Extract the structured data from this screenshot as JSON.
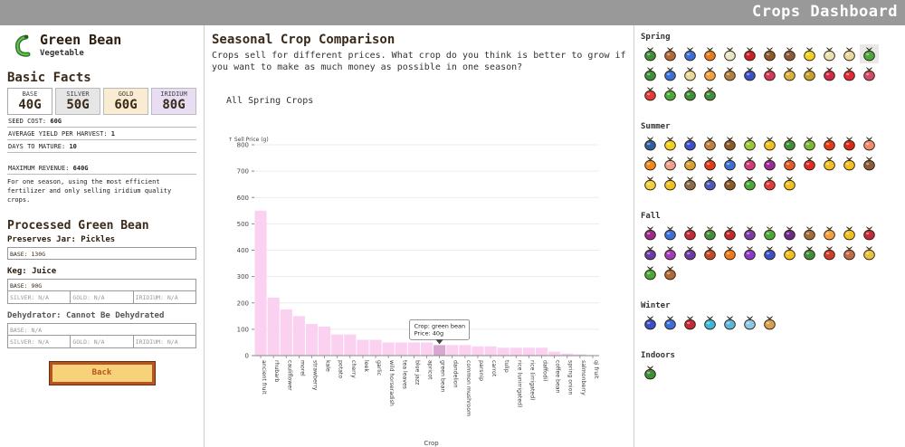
{
  "app": {
    "title": "Crops Dashboard"
  },
  "crop": {
    "name": "Green Bean",
    "type": "Vegetable"
  },
  "basic_facts": {
    "heading": "Basic Facts",
    "prices": [
      {
        "label": "BASE",
        "value": "40G"
      },
      {
        "label": "SILVER",
        "value": "50G"
      },
      {
        "label": "GOLD",
        "value": "60G"
      },
      {
        "label": "IRIDIUM",
        "value": "80G"
      }
    ],
    "facts": [
      {
        "label": "SEED COST:",
        "value": "60G"
      },
      {
        "label": "AVERAGE YIELD PER HARVEST:",
        "value": "1"
      },
      {
        "label": "DAYS TO MATURE:",
        "value": "10"
      }
    ],
    "max_revenue_label": "MAXIMUM REVENUE:",
    "max_revenue_value": "640G",
    "description": "For one season, using the most efficient fertilizer and only selling iridium quality crops."
  },
  "processed": {
    "heading": "Processed Green Bean",
    "preserves_label": "Preserves Jar: Pickles",
    "preserves_base": "BASE: 130G",
    "keg_label": "Keg: Juice",
    "keg_base": "BASE: 90G",
    "keg_silver": "SILVER: N/A",
    "keg_gold": "GOLD: N/A",
    "keg_iridium": "IRIDIUM: N/A",
    "dehydrator_label": "Dehydrator: Cannot Be Dehydrated",
    "dehydrator_base": "BASE: N/A",
    "dehydrator_silver": "SILVER: N/A",
    "dehydrator_gold": "GOLD: N/A",
    "dehydrator_iridium": "IRIDIUM: N/A"
  },
  "back_button": {
    "label": "Back"
  },
  "comparison": {
    "heading": "Seasonal Crop Comparison",
    "intro": "Crops sell for different prices. What crop do you think is better to grow if you want to make as much money as possible in one season?"
  },
  "chart_data": {
    "type": "bar",
    "title": "All Spring Crops",
    "xlabel": "Crop",
    "ylabel": "Sell Price (g)",
    "ylim": [
      0,
      800
    ],
    "yticks": [
      0,
      100,
      200,
      300,
      400,
      500,
      600,
      700,
      800
    ],
    "grid": true,
    "bar_color": "#fad1f0",
    "highlight_color": "#d9a8d0",
    "categories": [
      "ancient fruit",
      "rhubarb",
      "cauliflower",
      "morel",
      "strawberry",
      "kale",
      "potato",
      "cherry",
      "leek",
      "garlic",
      "wild horseradish",
      "tea leaves",
      "blue jazz",
      "apricot",
      "green bean",
      "dandelion",
      "common mushroom",
      "parsnip",
      "carrot",
      "tulip",
      "rice (unirrigated)",
      "rice (irrigated)",
      "daffodil",
      "coffee bean",
      "spring onion",
      "salmonberry",
      "qi fruit"
    ],
    "values": [
      550,
      220,
      175,
      150,
      120,
      110,
      80,
      80,
      60,
      60,
      50,
      50,
      50,
      50,
      40,
      40,
      40,
      35,
      35,
      30,
      30,
      30,
      30,
      15,
      8,
      5,
      1
    ],
    "highlighted": "green bean",
    "tooltip": {
      "crop_label": "Crop: green bean",
      "price_label": "Price: 40g"
    }
  },
  "seasons": [
    {
      "name": "Spring",
      "crops": [
        {
          "icon": "tea-sapling",
          "color": "#3f8f3a",
          "accent": "#2f5fa0"
        },
        {
          "icon": "coffee-bean",
          "color": "#b06a3a",
          "accent": "#6b3a1a"
        },
        {
          "icon": "blue-jazz",
          "color": "#3a6fd8",
          "accent": "#2e7a2e"
        },
        {
          "icon": "carrot",
          "color": "#e57a1e",
          "accent": "#3f8f3a"
        },
        {
          "icon": "cauliflower",
          "color": "#e8e4c8",
          "accent": "#3f8f3a"
        },
        {
          "icon": "cherry",
          "color": "#c9202a",
          "accent": "#3f8f3a"
        },
        {
          "icon": "coffee-bean-2",
          "color": "#8a5a2a",
          "accent": "#c9a24a"
        },
        {
          "icon": "morel",
          "color": "#8a5a3a",
          "accent": "#c9a24a"
        },
        {
          "icon": "daffodil",
          "color": "#f0d020",
          "accent": "#3f8f3a"
        },
        {
          "icon": "garlic",
          "color": "#e8e0b0",
          "accent": "#3f8f3a"
        },
        {
          "icon": "rice",
          "color": "#e8d8a0",
          "accent": "#9a8a4a"
        },
        {
          "icon": "green-bean",
          "color": "#4aa83a",
          "accent": "#2e7a2e"
        },
        {
          "icon": "kale",
          "color": "#3f8f3a",
          "accent": "#2e7a2e"
        },
        {
          "icon": "jar",
          "color": "#3a6fd8",
          "accent": "#3f8f3a"
        },
        {
          "icon": "parsnip",
          "color": "#e8d89a",
          "accent": "#3f8f3a"
        },
        {
          "icon": "apricot",
          "color": "#f0a040",
          "accent": "#3f8f3a"
        },
        {
          "icon": "potato",
          "color": "#b08040",
          "accent": "#6b4a1a"
        },
        {
          "icon": "blue-berries",
          "color": "#3a50c8",
          "accent": "#2e7a2e"
        },
        {
          "icon": "rhubarb",
          "color": "#d03a5a",
          "accent": "#3f8f3a"
        },
        {
          "icon": "wheat",
          "color": "#d8b040",
          "accent": "#9a7a2a"
        },
        {
          "icon": "wheat-2",
          "color": "#c8a030",
          "accent": "#9a7a2a"
        },
        {
          "icon": "salmonberry",
          "color": "#d02a4a",
          "accent": "#8a1a2a"
        },
        {
          "icon": "strawberry",
          "color": "#e02a3a",
          "accent": "#3f8f3a"
        },
        {
          "icon": "rhubarb-stalk",
          "color": "#d04a6a",
          "accent": "#3f8f3a"
        },
        {
          "icon": "strawberry-2",
          "color": "#e03a3a",
          "accent": "#3f8f3a"
        },
        {
          "icon": "spring-onion",
          "color": "#4aa83a",
          "accent": "#e8e0b0"
        },
        {
          "icon": "leek",
          "color": "#3f8f3a",
          "accent": "#e8e0b0"
        },
        {
          "icon": "tulip-pot",
          "color": "#3f8f3a",
          "accent": "#c9a24a"
        }
      ]
    },
    {
      "name": "Summer",
      "crops": [
        {
          "icon": "summer-1",
          "color": "#2f5fa0",
          "accent": "#3f8f3a"
        },
        {
          "icon": "banana",
          "color": "#f0d020",
          "accent": "#8a6a1a"
        },
        {
          "icon": "blueberry",
          "color": "#3a50c8",
          "accent": "#2e7a2e"
        },
        {
          "icon": "bread",
          "color": "#c08040",
          "accent": "#6b3a1a"
        },
        {
          "icon": "coconut",
          "color": "#8a5a2a",
          "accent": "#3a2a1a"
        },
        {
          "icon": "hops",
          "color": "#9ac83a",
          "accent": "#3f8f3a"
        },
        {
          "icon": "corn",
          "color": "#f0c020",
          "accent": "#3f8f3a"
        },
        {
          "icon": "herb",
          "color": "#3f8f3a",
          "accent": "#2e7a2e"
        },
        {
          "icon": "hops-2",
          "color": "#7ab83a",
          "accent": "#3f8f3a"
        },
        {
          "icon": "hot-pepper",
          "color": "#e03a1a",
          "accent": "#3f8f3a"
        },
        {
          "icon": "chili",
          "color": "#d82a1a",
          "accent": "#3f8f3a"
        },
        {
          "icon": "peach",
          "color": "#f08a6a",
          "accent": "#3f8f3a"
        },
        {
          "icon": "orange",
          "color": "#f08a20",
          "accent": "#3f8f3a"
        },
        {
          "icon": "peach-2",
          "color": "#f0a08a",
          "accent": "#3f8f3a"
        },
        {
          "icon": "pineapple",
          "color": "#d8a030",
          "accent": "#3f8f3a"
        },
        {
          "icon": "poppy",
          "color": "#e03a1a",
          "accent": "#3f8f3a"
        },
        {
          "icon": "blue-pot",
          "color": "#3a6fd8",
          "accent": "#3f8f3a"
        },
        {
          "icon": "radish",
          "color": "#d03a7a",
          "accent": "#3f8f3a"
        },
        {
          "icon": "red-cabbage",
          "color": "#9a2a9a",
          "accent": "#3f8f3a"
        },
        {
          "icon": "mushroom",
          "color": "#e05a2a",
          "accent": "#e8e0b0"
        },
        {
          "icon": "tomato",
          "color": "#e02a2a",
          "accent": "#3f8f3a"
        },
        {
          "icon": "starfruit",
          "color": "#f0c020",
          "accent": "#c08a10"
        },
        {
          "icon": "sunflower",
          "color": "#f0c020",
          "accent": "#6b3a1a"
        },
        {
          "icon": "taro",
          "color": "#8a5a3a",
          "accent": "#3f8f3a"
        },
        {
          "icon": "banana-2",
          "color": "#f0d040",
          "accent": "#8a6a1a"
        },
        {
          "icon": "summer-spangle",
          "color": "#f0c020",
          "accent": "#3f8f3a"
        },
        {
          "icon": "taro-root",
          "color": "#8a6a4a",
          "accent": "#3f8f3a"
        },
        {
          "icon": "blueberry-bush",
          "color": "#4a5ab8",
          "accent": "#3f8f3a"
        },
        {
          "icon": "wild-log",
          "color": "#8a5a2a",
          "accent": "#6b3a1a"
        },
        {
          "icon": "herb-2",
          "color": "#4aa83a",
          "accent": "#2e7a2e"
        },
        {
          "icon": "radish-2",
          "color": "#e03a3a",
          "accent": "#3f8f3a"
        },
        {
          "icon": "flower-pot",
          "color": "#f0c020",
          "accent": "#3f8f3a"
        }
      ]
    },
    {
      "name": "Fall",
      "crops": [
        {
          "icon": "amaranth",
          "color": "#9a2a8a",
          "accent": "#3f8f3a"
        },
        {
          "icon": "artichoke",
          "color": "#3a6fd8",
          "accent": "#3f8f3a"
        },
        {
          "icon": "beet",
          "color": "#c02a3a",
          "accent": "#3f8f3a"
        },
        {
          "icon": "bok-choy",
          "color": "#3f8f3a",
          "accent": "#e8e0b0"
        },
        {
          "icon": "cranberry",
          "color": "#c02a2a",
          "accent": "#3f8f3a"
        },
        {
          "icon": "grape",
          "color": "#7a3aa8",
          "accent": "#3f8f3a"
        },
        {
          "icon": "bok-choy-2",
          "color": "#4aa83a",
          "accent": "#e8e0b0"
        },
        {
          "icon": "eggplant",
          "color": "#6a2a8a",
          "accent": "#3f8f3a"
        },
        {
          "icon": "mushroom-2",
          "color": "#a06a3a",
          "accent": "#e8e0b0"
        },
        {
          "icon": "fairy-rose",
          "color": "#f0a040",
          "accent": "#3f8f3a"
        },
        {
          "icon": "corn-2",
          "color": "#f0c020",
          "accent": "#3f8f3a"
        },
        {
          "icon": "radish-3",
          "color": "#c02a3a",
          "accent": "#3f8f3a"
        },
        {
          "icon": "eggplant-2",
          "color": "#6a3aa8",
          "accent": "#3f8f3a"
        },
        {
          "icon": "amaranth-2",
          "color": "#a03ab8",
          "accent": "#3f8f3a"
        },
        {
          "icon": "grape-2",
          "color": "#6a3aa8",
          "accent": "#3f8f3a"
        },
        {
          "icon": "pomegranate",
          "color": "#c04a2a",
          "accent": "#6b2a1a"
        },
        {
          "icon": "pumpkin",
          "color": "#f07a1a",
          "accent": "#3f8f3a"
        },
        {
          "icon": "purple-mushroom",
          "color": "#8a3ac8",
          "accent": "#e8e0b0"
        },
        {
          "icon": "blue-jar",
          "color": "#3a50c8",
          "accent": "#3f8f3a"
        },
        {
          "icon": "sunflower-2",
          "color": "#f0c020",
          "accent": "#6b3a1a"
        },
        {
          "icon": "herb-3",
          "color": "#3f8f3a",
          "accent": "#2e7a2e"
        },
        {
          "icon": "pomegranate-2",
          "color": "#d03a2a",
          "accent": "#3f8f3a"
        },
        {
          "icon": "yam",
          "color": "#c06a4a",
          "accent": "#3f8f3a"
        },
        {
          "icon": "wheat-3",
          "color": "#e8c040",
          "accent": "#9a7a2a"
        },
        {
          "icon": "leaf",
          "color": "#4aa83a",
          "accent": "#2e7a2e"
        },
        {
          "icon": "sweet-gem",
          "color": "#b06a3a",
          "accent": "#6b3a1a"
        }
      ]
    },
    {
      "name": "Winter",
      "crops": [
        {
          "icon": "winter-1",
          "color": "#3a50c8",
          "accent": "#7a3aa8"
        },
        {
          "icon": "winter-2",
          "color": "#3a6fd8",
          "accent": "#3f8f3a"
        },
        {
          "icon": "holly",
          "color": "#c02a3a",
          "accent": "#3f8f3a"
        },
        {
          "icon": "crystal-fruit",
          "color": "#3ab8d8",
          "accent": "#3f8f3a"
        },
        {
          "icon": "snow-yam",
          "color": "#5ab8d8",
          "accent": "#3a6fd8"
        },
        {
          "icon": "winter-root",
          "color": "#8ac8e8",
          "accent": "#3f8f3a"
        },
        {
          "icon": "snail",
          "color": "#d8a050",
          "accent": "#8a5a2a"
        }
      ]
    },
    {
      "name": "Indoors",
      "crops": [
        {
          "icon": "indoor-plant",
          "color": "#3f8f3a",
          "accent": "#c02a3a"
        }
      ]
    }
  ],
  "selected_tile": {
    "season": 0,
    "index": 11
  }
}
